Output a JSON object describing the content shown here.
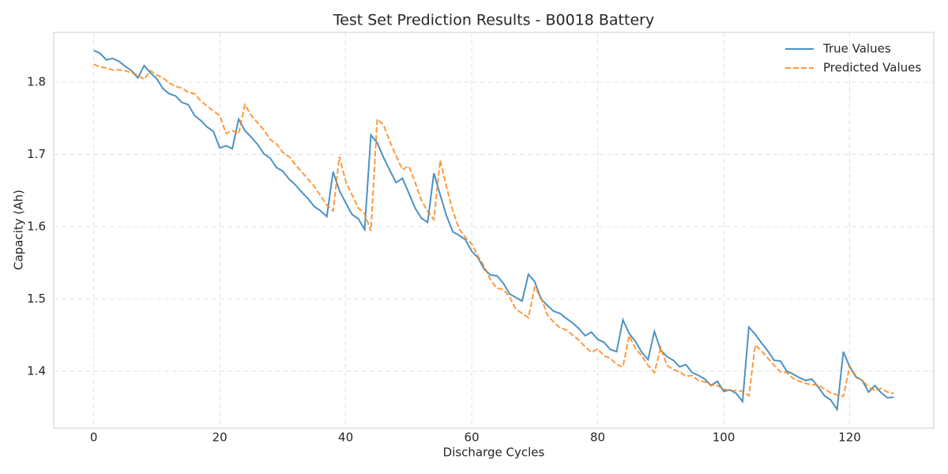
{
  "chart_data": {
    "type": "line",
    "title": "Test Set Prediction Results - B0018 Battery",
    "x_label": "Discharge Cycles",
    "y_label": "Capacity (Ah)",
    "x": [
      0,
      1,
      2,
      3,
      4,
      5,
      6,
      7,
      8,
      9,
      10,
      11,
      12,
      13,
      14,
      15,
      16,
      17,
      18,
      19,
      20,
      21,
      22,
      23,
      24,
      25,
      26,
      27,
      28,
      29,
      30,
      31,
      32,
      33,
      34,
      35,
      36,
      37,
      38,
      39,
      40,
      41,
      42,
      43,
      44,
      45,
      46,
      47,
      48,
      49,
      50,
      51,
      52,
      53,
      54,
      55,
      56,
      57,
      58,
      59,
      60,
      61,
      62,
      63,
      64,
      65,
      66,
      67,
      68,
      69,
      70,
      71,
      72,
      73,
      74,
      75,
      76,
      77,
      78,
      79,
      80,
      81,
      82,
      83,
      84,
      85,
      86,
      87,
      88,
      89,
      90,
      91,
      92,
      93,
      94,
      95,
      96,
      97,
      98,
      99,
      100,
      101,
      102,
      103,
      104,
      105,
      106,
      107,
      108,
      109,
      110,
      111,
      112,
      113,
      114,
      115,
      116,
      117,
      118,
      119,
      120,
      121,
      122,
      123,
      124,
      125,
      126,
      127
    ],
    "series": [
      {
        "name": "True Values",
        "color": "#1f77b4",
        "linestyle": "solid",
        "values": [
          1.844,
          1.84,
          1.831,
          1.833,
          1.829,
          1.822,
          1.816,
          1.806,
          1.823,
          1.813,
          1.805,
          1.791,
          1.784,
          1.781,
          1.772,
          1.769,
          1.754,
          1.747,
          1.738,
          1.732,
          1.709,
          1.712,
          1.708,
          1.749,
          1.733,
          1.724,
          1.714,
          1.701,
          1.695,
          1.682,
          1.677,
          1.666,
          1.658,
          1.648,
          1.639,
          1.628,
          1.622,
          1.614,
          1.676,
          1.65,
          1.633,
          1.617,
          1.611,
          1.596,
          1.727,
          1.716,
          1.696,
          1.678,
          1.661,
          1.667,
          1.647,
          1.626,
          1.612,
          1.606,
          1.674,
          1.644,
          1.615,
          1.593,
          1.588,
          1.582,
          1.566,
          1.557,
          1.541,
          1.533,
          1.532,
          1.522,
          1.507,
          1.502,
          1.497,
          1.534,
          1.524,
          1.5,
          1.491,
          1.483,
          1.48,
          1.473,
          1.467,
          1.459,
          1.449,
          1.454,
          1.444,
          1.44,
          1.43,
          1.427,
          1.471,
          1.452,
          1.441,
          1.426,
          1.416,
          1.455,
          1.429,
          1.42,
          1.415,
          1.406,
          1.409,
          1.398,
          1.394,
          1.389,
          1.38,
          1.386,
          1.372,
          1.374,
          1.369,
          1.358,
          1.461,
          1.451,
          1.439,
          1.428,
          1.415,
          1.414,
          1.4,
          1.396,
          1.391,
          1.387,
          1.389,
          1.378,
          1.366,
          1.36,
          1.347,
          1.427,
          1.406,
          1.392,
          1.387,
          1.371,
          1.38,
          1.37,
          1.363,
          1.364
        ]
      },
      {
        "name": "Predicted Values",
        "color": "#ff7f0e",
        "linestyle": "dashed",
        "values": [
          1.825,
          1.821,
          1.82,
          1.817,
          1.817,
          1.816,
          1.813,
          1.81,
          1.804,
          1.816,
          1.81,
          1.806,
          1.799,
          1.794,
          1.792,
          1.786,
          1.784,
          1.774,
          1.767,
          1.76,
          1.754,
          1.729,
          1.733,
          1.729,
          1.769,
          1.754,
          1.744,
          1.734,
          1.721,
          1.715,
          1.703,
          1.697,
          1.686,
          1.676,
          1.666,
          1.656,
          1.643,
          1.63,
          1.622,
          1.697,
          1.663,
          1.644,
          1.626,
          1.618,
          1.594,
          1.749,
          1.741,
          1.718,
          1.698,
          1.679,
          1.684,
          1.662,
          1.637,
          1.621,
          1.61,
          1.692,
          1.655,
          1.622,
          1.597,
          1.585,
          1.576,
          1.559,
          1.545,
          1.526,
          1.515,
          1.513,
          1.503,
          1.486,
          1.48,
          1.474,
          1.516,
          1.502,
          1.478,
          1.468,
          1.46,
          1.457,
          1.45,
          1.443,
          1.434,
          1.426,
          1.431,
          1.421,
          1.418,
          1.409,
          1.406,
          1.449,
          1.431,
          1.421,
          1.408,
          1.398,
          1.432,
          1.408,
          1.402,
          1.399,
          1.393,
          1.394,
          1.387,
          1.385,
          1.381,
          1.38,
          1.375,
          1.373,
          1.373,
          1.372,
          1.366,
          1.436,
          1.428,
          1.418,
          1.408,
          1.399,
          1.398,
          1.39,
          1.386,
          1.383,
          1.381,
          1.381,
          1.375,
          1.37,
          1.367,
          1.365,
          1.407,
          1.393,
          1.387,
          1.378,
          1.373,
          1.376,
          1.371,
          1.369
        ]
      }
    ],
    "xlim": [
      -6.35,
      133.35
    ],
    "ylim": [
      1.321,
      1.869
    ],
    "xticks": [
      0,
      20,
      40,
      60,
      80,
      100,
      120
    ],
    "yticks": [
      1.4,
      1.5,
      1.6,
      1.7,
      1.8
    ],
    "grid": true,
    "legend": "upper right"
  }
}
